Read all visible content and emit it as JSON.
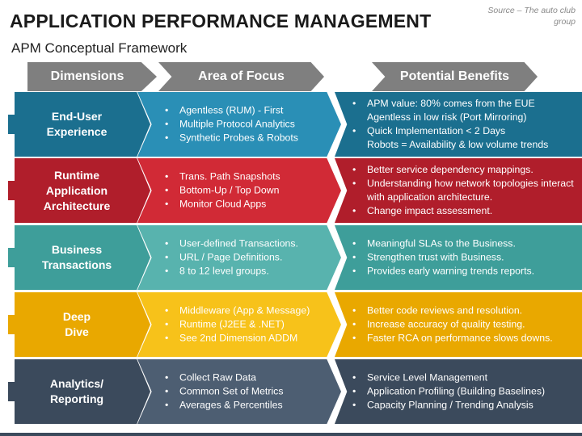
{
  "title": "APPLICATION PERFORMANCE MANAGEMENT",
  "subtitle": "APM Conceptual Framework",
  "source": "Source – The auto club group",
  "headers": {
    "dimensions": "Dimensions",
    "focus": "Area of Focus",
    "benefits": "Potential Benefits"
  },
  "rows": [
    {
      "dimension": "End-User\nExperience",
      "colors": {
        "dark": "#1b6f8f",
        "light": "#2a8fb6",
        "tab": "#1b6f8f"
      },
      "focus": [
        "Agentless (RUM) - First",
        "Multiple Protocol Analytics",
        "Synthetic Probes & Robots"
      ],
      "benefits": [
        {
          "text": "APM value: 80% comes from the EUE",
          "bullet": true
        },
        {
          "text": "Agentless in low risk (Port Mirroring)",
          "bullet": false
        },
        {
          "text": "Quick Implementation < 2 Days",
          "bullet": true
        },
        {
          "text": "Robots = Availability & low volume trends",
          "bullet": false
        }
      ]
    },
    {
      "dimension": "Runtime\nApplication\nArchitecture",
      "colors": {
        "dark": "#b01e2b",
        "light": "#d12a36",
        "tab": "#b01e2b"
      },
      "focus": [
        "Trans. Path Snapshots",
        "Bottom-Up / Top Down",
        "Monitor Cloud Apps"
      ],
      "benefits": [
        {
          "text": "Better service dependency mappings.",
          "bullet": true
        },
        {
          "text": "Understanding how network topologies interact with application architecture.",
          "bullet": true
        },
        {
          "text": "Change impact assessment.",
          "bullet": true
        }
      ]
    },
    {
      "dimension": "Business\nTransactions",
      "colors": {
        "dark": "#3e9e9a",
        "light": "#58b3ae",
        "tab": "#3e9e9a"
      },
      "focus": [
        "User-defined Transactions.",
        "URL / Page Definitions.",
        "8 to 12 level groups."
      ],
      "benefits": [
        {
          "text": "Meaningful SLAs to the Business.",
          "bullet": true
        },
        {
          "text": "Strengthen trust with Business.",
          "bullet": true
        },
        {
          "text": "Provides early warning trends reports.",
          "bullet": true
        }
      ]
    },
    {
      "dimension": "Deep\nDive",
      "colors": {
        "dark": "#e9a800",
        "light": "#f7c21a",
        "tab": "#e9a800"
      },
      "focus": [
        "Middleware (App & Message)",
        "Runtime (J2EE & .NET)",
        "See 2nd Dimension ADDM"
      ],
      "benefits": [
        {
          "text": "Better code reviews and resolution.",
          "bullet": true
        },
        {
          "text": "Increase accuracy of quality testing.",
          "bullet": true
        },
        {
          "text": "Faster RCA on performance slows downs.",
          "bullet": true
        }
      ]
    },
    {
      "dimension": "Analytics/\nReporting",
      "colors": {
        "dark": "#3b4a5c",
        "light": "#4d5e72",
        "tab": "#3b4a5c"
      },
      "focus": [
        "Collect Raw Data",
        "Common Set of Metrics",
        "Averages & Percentiles"
      ],
      "benefits": [
        {
          "text": "Service Level Management",
          "bullet": true
        },
        {
          "text": "Application Profiling (Building Baselines)",
          "bullet": true
        },
        {
          "text": "Capacity Planning / Trending Analysis",
          "bullet": true
        }
      ]
    }
  ]
}
